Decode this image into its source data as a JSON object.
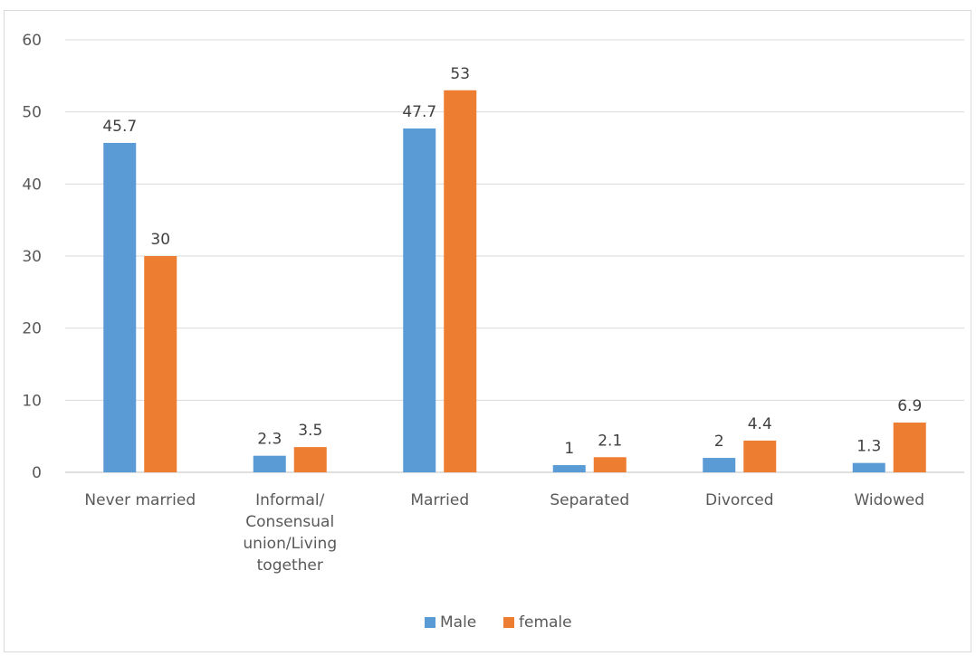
{
  "chart_data": {
    "type": "bar",
    "title": "",
    "xlabel": "",
    "ylabel": "",
    "categories": [
      [
        "Never married"
      ],
      [
        "Informal/",
        "Consensual",
        "union/Living",
        "together"
      ],
      [
        "Married"
      ],
      [
        "Separated"
      ],
      [
        "Divorced"
      ],
      [
        "Widowed"
      ]
    ],
    "series": [
      {
        "name": "Male",
        "color": "#5b9bd5",
        "values": [
          45.7,
          2.3,
          47.7,
          1,
          2,
          1.3
        ]
      },
      {
        "name": "female",
        "color": "#ed7d31",
        "values": [
          30,
          3.5,
          53,
          2.1,
          4.4,
          6.9
        ]
      }
    ],
    "ylim": [
      0,
      60
    ],
    "yticks": [
      0,
      10,
      20,
      30,
      40,
      50,
      60
    ],
    "grid": true,
    "legend_position": "bottom"
  }
}
